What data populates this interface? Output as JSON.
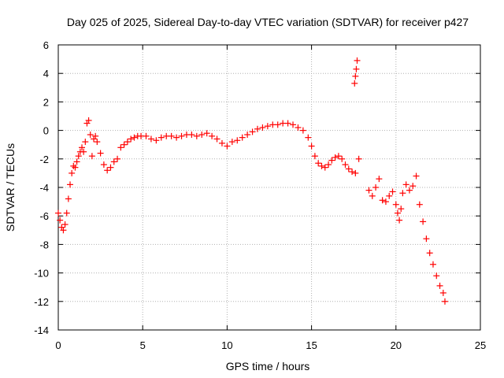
{
  "chart_data": {
    "type": "scatter",
    "title": "Day 025 of 2025, Sidereal Day-to-day VTEC variation (SDTVAR) for receiver p427",
    "xlabel": "GPS time / hours",
    "ylabel": "SDTVAR / TECUs",
    "xlim": [
      0,
      25
    ],
    "ylim": [
      -14,
      6
    ],
    "xticks": [
      0,
      5,
      10,
      15,
      20,
      25
    ],
    "xtick_labels": [
      "0",
      "5",
      "10",
      "15",
      "20",
      "25"
    ],
    "yticks": [
      6,
      4,
      2,
      0,
      -2,
      -4,
      -6,
      -8,
      -10,
      -12,
      -14
    ],
    "ytick_labels": [
      "6",
      "4",
      "2",
      "0",
      "-2",
      "-4",
      "-6",
      "-8",
      "-10",
      "-12",
      "-14"
    ],
    "grid": true,
    "marker": "+",
    "color": "#ff0000",
    "series": [
      {
        "name": "SDTVAR",
        "x": [
          0.0,
          0.1,
          0.2,
          0.3,
          0.4,
          0.5,
          0.6,
          0.7,
          0.8,
          0.9,
          1.0,
          1.1,
          1.2,
          1.3,
          1.4,
          1.5,
          1.6,
          1.7,
          1.8,
          1.9,
          2.0,
          2.1,
          2.2,
          2.3,
          2.5,
          2.7,
          2.9,
          3.1,
          3.3,
          3.5,
          3.7,
          3.9,
          4.1,
          4.3,
          4.5,
          4.7,
          4.9,
          5.2,
          5.5,
          5.8,
          6.1,
          6.4,
          6.7,
          7.0,
          7.3,
          7.6,
          7.9,
          8.2,
          8.5,
          8.8,
          9.1,
          9.4,
          9.7,
          10.0,
          10.3,
          10.6,
          10.9,
          11.2,
          11.5,
          11.8,
          12.1,
          12.4,
          12.7,
          13.0,
          13.3,
          13.6,
          13.9,
          14.2,
          14.5,
          14.8,
          15.0,
          15.2,
          15.4,
          15.6,
          15.8,
          16.0,
          16.2,
          16.4,
          16.6,
          16.8,
          17.0,
          17.2,
          17.4,
          17.6,
          17.8,
          17.55,
          17.6,
          17.65,
          17.7,
          18.4,
          18.6,
          18.8,
          19.0,
          19.2,
          19.4,
          19.6,
          19.8,
          20.0,
          20.1,
          20.2,
          20.3,
          20.4,
          20.6,
          20.8,
          21.0,
          21.2,
          21.4,
          21.6,
          21.8,
          22.0,
          22.2,
          22.4,
          22.6,
          22.8,
          22.9
        ],
        "y": [
          -5.8,
          -6.3,
          -6.8,
          -7.0,
          -6.6,
          -5.8,
          -4.8,
          -3.8,
          -3.0,
          -2.5,
          -2.6,
          -2.2,
          -1.8,
          -1.5,
          -1.2,
          -1.5,
          -0.8,
          0.5,
          0.7,
          -0.3,
          -1.8,
          -0.6,
          -0.4,
          -0.8,
          -1.6,
          -2.4,
          -2.8,
          -2.6,
          -2.2,
          -2.0,
          -1.2,
          -1.0,
          -0.8,
          -0.6,
          -0.5,
          -0.4,
          -0.4,
          -0.4,
          -0.6,
          -0.7,
          -0.5,
          -0.4,
          -0.4,
          -0.5,
          -0.4,
          -0.3,
          -0.3,
          -0.4,
          -0.3,
          -0.2,
          -0.4,
          -0.6,
          -0.9,
          -1.1,
          -0.8,
          -0.7,
          -0.5,
          -0.3,
          -0.1,
          0.1,
          0.2,
          0.3,
          0.4,
          0.4,
          0.5,
          0.5,
          0.4,
          0.2,
          0.0,
          -0.5,
          -1.1,
          -1.8,
          -2.3,
          -2.5,
          -2.6,
          -2.4,
          -2.1,
          -1.9,
          -1.8,
          -2.0,
          -2.4,
          -2.7,
          -2.9,
          -3.0,
          -2.0,
          3.3,
          3.8,
          4.3,
          4.9,
          -4.2,
          -4.6,
          -4.0,
          -3.4,
          -4.9,
          -5.0,
          -4.6,
          -4.3,
          -5.2,
          -5.8,
          -6.3,
          -5.5,
          -4.4,
          -3.8,
          -4.2,
          -3.9,
          -3.2,
          -5.2,
          -6.4,
          -7.6,
          -8.6,
          -9.4,
          -10.2,
          -10.9,
          -11.4,
          -12.0
        ]
      }
    ]
  }
}
